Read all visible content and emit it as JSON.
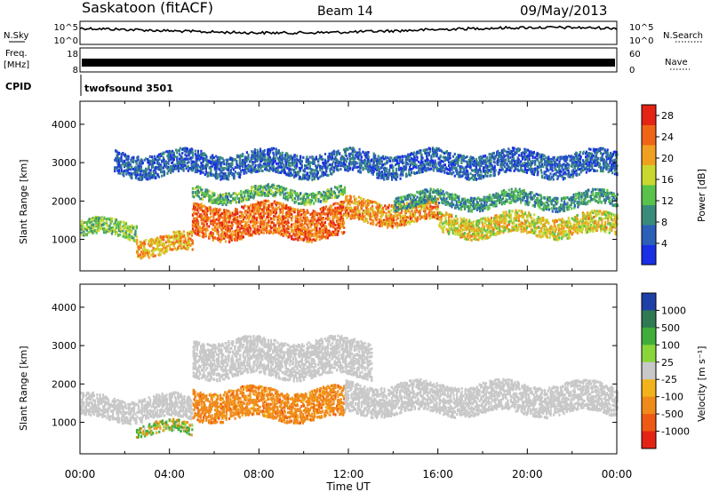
{
  "header": {
    "station": "Saskatoon (fitACF)",
    "beam": "Beam 14",
    "date": "09/May/2013"
  },
  "status": {
    "nsky_label": "N.Sky",
    "nsearch_label": "N.Search",
    "freq_label_line1": "Freq.",
    "freq_label_line2": "[MHz]",
    "nave_label": "Nave",
    "cpid_label": "CPID",
    "cpid_value": "twofsound 3501",
    "noise_ticks_left": [
      "10^5",
      "10^0"
    ],
    "noise_ticks_right": [
      "10^5",
      "10^0"
    ],
    "freq_ticks": [
      "18",
      "8"
    ],
    "nave_ticks": [
      "60",
      "0"
    ],
    "freq_range_mhz": [
      8,
      18
    ],
    "nave_range": [
      0,
      60
    ]
  },
  "chart_data": [
    {
      "type": "heatmap",
      "title": "",
      "xlabel": "",
      "ylabel": "Slant Range [km]",
      "y_ticks": [
        "1000",
        "2000",
        "3000",
        "4000"
      ],
      "ylim": [
        180,
        4600
      ],
      "x_ticks": [
        "00:00",
        "04:00",
        "08:00",
        "12:00",
        "16:00",
        "20:00",
        "00:00"
      ],
      "colorbar": {
        "label": "Power [dB]",
        "ticks": [
          "4",
          "8",
          "12",
          "16",
          "20",
          "24",
          "28"
        ],
        "range": [
          0,
          30
        ],
        "colors": [
          "#1a2ee6",
          "#2b5fb8",
          "#3a8c7a",
          "#58c24a",
          "#c9d830",
          "#f0a020",
          "#f06418",
          "#e52315"
        ]
      },
      "bands": [
        {
          "t": [
            0.0,
            2.5
          ],
          "center_km": 1300,
          "width_km": 350,
          "power_db": 14
        },
        {
          "t": [
            2.5,
            5.0
          ],
          "center_km": 900,
          "width_km": 400,
          "power_db": 20
        },
        {
          "t": [
            5.0,
            11.8
          ],
          "center_km": 1500,
          "width_km": 700,
          "power_db": 24
        },
        {
          "t": [
            5.0,
            11.8
          ],
          "center_km": 2200,
          "width_km": 250,
          "power_db": 12
        },
        {
          "t": [
            11.8,
            16.0
          ],
          "center_km": 1750,
          "width_km": 500,
          "power_db": 22
        },
        {
          "t": [
            16.0,
            24.0
          ],
          "center_km": 1400,
          "width_km": 450,
          "power_db": 18
        },
        {
          "t": [
            14.0,
            24.0
          ],
          "center_km": 2050,
          "width_km": 300,
          "power_db": 10
        },
        {
          "t": [
            1.5,
            24.0
          ],
          "center_km": 3000,
          "width_km": 500,
          "power_db": 6
        }
      ]
    },
    {
      "type": "heatmap",
      "title": "",
      "xlabel": "Time UT",
      "ylabel": "Slant Range [km]",
      "y_ticks": [
        "1000",
        "2000",
        "3000",
        "4000"
      ],
      "ylim": [
        180,
        4600
      ],
      "x_ticks": [
        "00:00",
        "04:00",
        "08:00",
        "12:00",
        "16:00",
        "20:00",
        "00:00"
      ],
      "colorbar": {
        "label": "Velocity [m s⁻¹]",
        "ticks": [
          "1000",
          "500",
          "100",
          "25",
          "-25",
          "-100",
          "-500",
          "-1000"
        ],
        "colors": [
          "#1f3fa8",
          "#2f7a52",
          "#3fae3a",
          "#8ad63a",
          "#c8c8c8",
          "#f2b21c",
          "#f08a1a",
          "#ee5a14",
          "#e52315"
        ]
      },
      "bands": [
        {
          "t": [
            0.0,
            5.0
          ],
          "center_km": 1400,
          "width_km": 500,
          "velocity": 0
        },
        {
          "t": [
            2.5,
            5.0
          ],
          "center_km": 850,
          "width_km": 250,
          "velocity": 60
        },
        {
          "t": [
            5.0,
            11.8
          ],
          "center_km": 1500,
          "width_km": 650,
          "velocity": -300
        },
        {
          "t": [
            11.8,
            24.0
          ],
          "center_km": 1650,
          "width_km": 650,
          "velocity": 0
        },
        {
          "t": [
            5.0,
            13.0
          ],
          "center_km": 2700,
          "width_km": 800,
          "velocity": 0
        }
      ]
    }
  ]
}
